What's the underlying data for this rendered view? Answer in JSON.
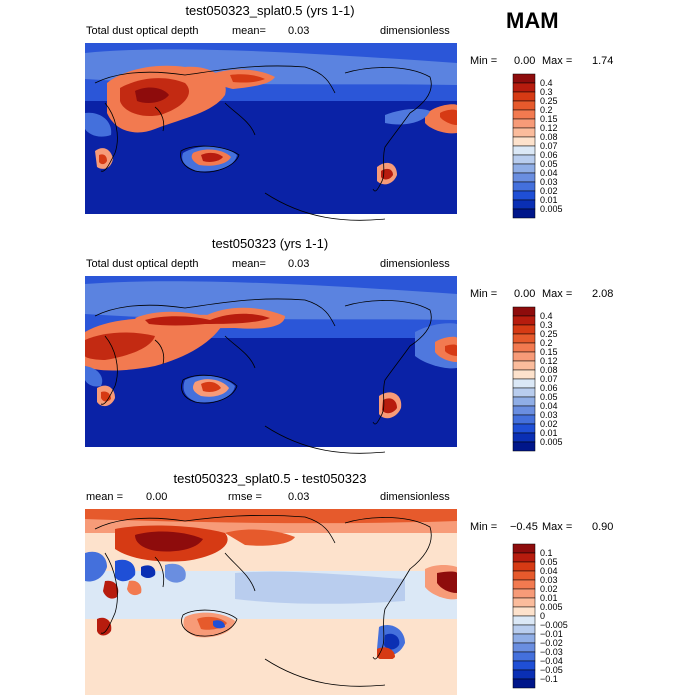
{
  "season": "MAM",
  "chart_data": [
    {
      "type": "heatmap",
      "title": "test050323_splat0.5 (yrs 1-1)",
      "variable": "Total dust optical depth",
      "mean_label": "mean=",
      "mean": "0.03",
      "units": "dimensionless",
      "min_label": "Min =",
      "min": "0.00",
      "max_label": "Max =",
      "max": "1.74",
      "colorbar_levels": [
        "0.4",
        "0.3",
        "0.25",
        "0.2",
        "0.15",
        "0.12",
        "0.08",
        "0.07",
        "0.06",
        "0.05",
        "0.04",
        "0.03",
        "0.02",
        "0.01",
        "0.005"
      ],
      "colorbar_colors": [
        "#8e0c0c",
        "#b71c0e",
        "#d63a14",
        "#e65a2c",
        "#f27a50",
        "#f79b78",
        "#fbbc9c",
        "#fde2cc",
        "#dbe8f6",
        "#b9cdee",
        "#90aee6",
        "#6a8ee0",
        "#4470dc",
        "#1f4fd6",
        "#0a2fb4",
        "#00168a"
      ]
    },
    {
      "type": "heatmap",
      "title": "test050323 (yrs 1-1)",
      "variable": "Total dust optical depth",
      "mean_label": "mean=",
      "mean": "0.03",
      "units": "dimensionless",
      "min_label": "Min =",
      "min": "0.00",
      "max_label": "Max =",
      "max": "2.08",
      "colorbar_levels": [
        "0.4",
        "0.3",
        "0.25",
        "0.2",
        "0.15",
        "0.12",
        "0.08",
        "0.07",
        "0.06",
        "0.05",
        "0.04",
        "0.03",
        "0.02",
        "0.01",
        "0.005"
      ],
      "colorbar_colors": [
        "#8e0c0c",
        "#b71c0e",
        "#d63a14",
        "#e65a2c",
        "#f27a50",
        "#f79b78",
        "#fbbc9c",
        "#fde2cc",
        "#dbe8f6",
        "#b9cdee",
        "#90aee6",
        "#6a8ee0",
        "#4470dc",
        "#1f4fd6",
        "#0a2fb4",
        "#00168a"
      ]
    },
    {
      "type": "heatmap",
      "title": "test050323_splat0.5 - test050323",
      "mean_label": "mean =",
      "mean": "0.00",
      "rmse_label": "rmse =",
      "rmse": "0.03",
      "units": "dimensionless",
      "min_label": "Min =",
      "min": "−0.45",
      "max_label": "Max =",
      "max": "0.90",
      "colorbar_levels": [
        "0.1",
        "0.05",
        "0.04",
        "0.03",
        "0.02",
        "0.01",
        "0.005",
        "0",
        "−0.005",
        "−0.01",
        "−0.02",
        "−0.03",
        "−0.04",
        "−0.05",
        "−0.1"
      ],
      "colorbar_colors": [
        "#8e0c0c",
        "#b71c0e",
        "#d63a14",
        "#e65a2c",
        "#f27a50",
        "#f79b78",
        "#fbbc9c",
        "#fde2cc",
        "#dbe8f6",
        "#b9cdee",
        "#90aee6",
        "#6a8ee0",
        "#4470dc",
        "#1f4fd6",
        "#0a2fb4",
        "#00168a"
      ]
    }
  ]
}
